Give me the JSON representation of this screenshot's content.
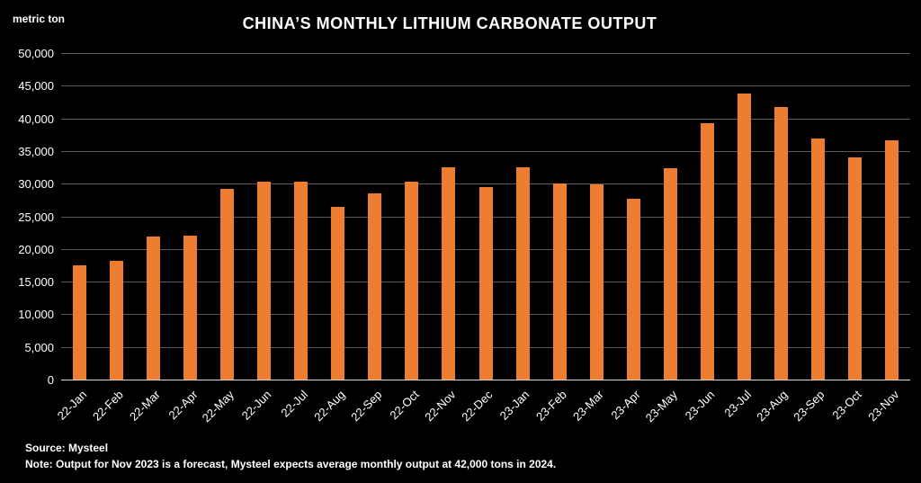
{
  "title": "CHINA’S MONTHLY LITHIUM CARBONATE OUTPUT",
  "y_axis_unit": "metric ton",
  "footer": {
    "source": "Source: Mysteel",
    "note": "Note: Output for Nov 2023 is a forecast, Mysteel expects average monthly output at 42,000 tons in 2024."
  },
  "colors": {
    "background": "#000000",
    "bar": "#ED7D31",
    "gridline": "#595959",
    "axis_line": "#d9d9d9",
    "text": "#ffffff"
  },
  "chart_data": {
    "type": "bar",
    "title": "CHINA’S MONTHLY LITHIUM CARBONATE OUTPUT",
    "xlabel": "",
    "ylabel": "metric ton",
    "ylim": [
      0,
      50000
    ],
    "ytick_interval": 5000,
    "grid": true,
    "legend": "none",
    "categories": [
      "22-Jan",
      "22-Feb",
      "22-Mar",
      "22-Apr",
      "22-May",
      "22-Jun",
      "22-Jul",
      "22-Aug",
      "22-Sep",
      "22-Oct",
      "22-Nov",
      "22-Dec",
      "23-Jan",
      "23-Feb",
      "23-Mar",
      "23-Apr",
      "23-May",
      "23-Jun",
      "23-Jul",
      "23-Aug",
      "23-Sep",
      "23-Oct",
      "23-Nov"
    ],
    "values": [
      17700,
      18300,
      22100,
      22200,
      29400,
      30500,
      30500,
      26600,
      28700,
      30500,
      32600,
      29600,
      32600,
      30100,
      30000,
      27800,
      32500,
      39400,
      44000,
      41900,
      37000,
      34200,
      36800
    ]
  }
}
